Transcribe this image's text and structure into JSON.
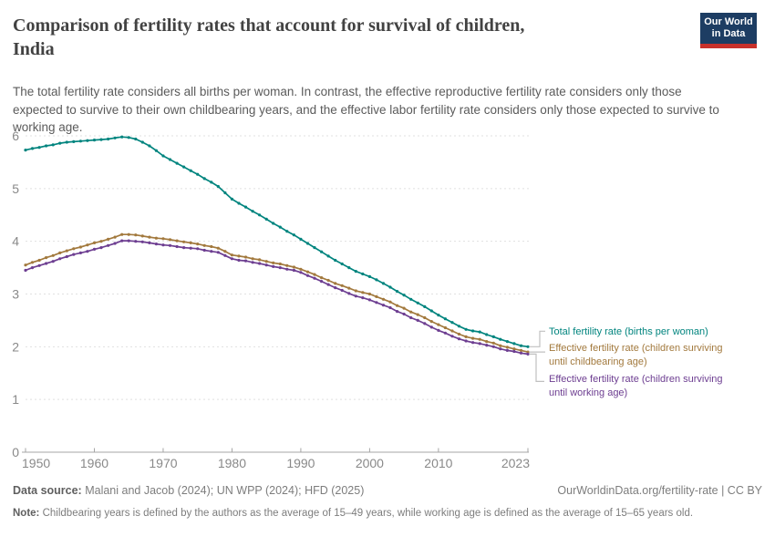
{
  "header": {
    "title_line1": "Comparison of fertility rates that account for survival of children,",
    "title_line2": "India",
    "subtitle": "The total fertility rate considers all births per woman. In contrast, the effective reproductive fertility rate considers only those expected to survive to their own childbearing years, and the effective labor fertility rate considers only those expected to survive to working age.",
    "logo": {
      "line1": "Our World",
      "line2": "in Data",
      "bg_color": "#1d3d63",
      "accent_color": "#c8312b"
    }
  },
  "chart_data": {
    "type": "line",
    "title": "Comparison of fertility rates that account for survival of children, India",
    "xlabel": "",
    "ylabel": "",
    "ylim": [
      0,
      6
    ],
    "grid": "dashed horizontal gridlines, solid baseline at 0",
    "legend_position": "right of line ends, color-coded labels with gray connectors",
    "x_ticks": [
      1950,
      1960,
      1970,
      1980,
      1990,
      2000,
      2010,
      2023
    ],
    "y_ticks": [
      0,
      1,
      2,
      3,
      4,
      5,
      6
    ],
    "x": [
      1950,
      1951,
      1952,
      1953,
      1954,
      1955,
      1956,
      1957,
      1958,
      1959,
      1960,
      1961,
      1962,
      1963,
      1964,
      1965,
      1966,
      1967,
      1968,
      1969,
      1970,
      1971,
      1972,
      1973,
      1974,
      1975,
      1976,
      1977,
      1978,
      1979,
      1980,
      1981,
      1982,
      1983,
      1984,
      1985,
      1986,
      1987,
      1988,
      1989,
      1990,
      1991,
      1992,
      1993,
      1994,
      1995,
      1996,
      1997,
      1998,
      1999,
      2000,
      2001,
      2002,
      2003,
      2004,
      2005,
      2006,
      2007,
      2008,
      2009,
      2010,
      2011,
      2012,
      2013,
      2014,
      2015,
      2016,
      2017,
      2018,
      2019,
      2020,
      2021,
      2022,
      2023
    ],
    "series": [
      {
        "name": "Total fertility rate (births per woman)",
        "label_lines": [
          "Total fertility rate (births per woman)"
        ],
        "color": "#00847e",
        "values": [
          5.73,
          5.76,
          5.78,
          5.81,
          5.83,
          5.86,
          5.88,
          5.89,
          5.9,
          5.91,
          5.92,
          5.93,
          5.94,
          5.96,
          5.98,
          5.97,
          5.94,
          5.88,
          5.81,
          5.72,
          5.62,
          5.55,
          5.48,
          5.41,
          5.34,
          5.27,
          5.19,
          5.12,
          5.04,
          4.92,
          4.8,
          4.72,
          4.65,
          4.57,
          4.5,
          4.42,
          4.34,
          4.27,
          4.19,
          4.12,
          4.04,
          3.96,
          3.88,
          3.8,
          3.72,
          3.64,
          3.57,
          3.5,
          3.43,
          3.38,
          3.33,
          3.27,
          3.2,
          3.13,
          3.05,
          2.98,
          2.9,
          2.83,
          2.76,
          2.68,
          2.6,
          2.53,
          2.46,
          2.39,
          2.33,
          2.3,
          2.28,
          2.23,
          2.19,
          2.14,
          2.1,
          2.06,
          2.02,
          2.0
        ]
      },
      {
        "name": "Effective fertility rate (children surviving until childbearing age)",
        "label_lines": [
          "Effective fertility rate (children surviving",
          "until childbearing age)"
        ],
        "color": "#a2793d",
        "values": [
          3.55,
          3.6,
          3.64,
          3.69,
          3.73,
          3.78,
          3.82,
          3.86,
          3.89,
          3.93,
          3.97,
          4.0,
          4.04,
          4.08,
          4.13,
          4.13,
          4.12,
          4.1,
          4.08,
          4.06,
          4.05,
          4.03,
          4.01,
          3.99,
          3.97,
          3.95,
          3.92,
          3.9,
          3.87,
          3.81,
          3.74,
          3.72,
          3.7,
          3.67,
          3.65,
          3.62,
          3.59,
          3.57,
          3.54,
          3.51,
          3.47,
          3.42,
          3.37,
          3.31,
          3.26,
          3.2,
          3.16,
          3.11,
          3.06,
          3.03,
          3.0,
          2.95,
          2.9,
          2.85,
          2.78,
          2.73,
          2.66,
          2.61,
          2.55,
          2.48,
          2.42,
          2.36,
          2.3,
          2.24,
          2.19,
          2.16,
          2.14,
          2.1,
          2.07,
          2.02,
          1.99,
          1.96,
          1.93,
          1.9
        ]
      },
      {
        "name": "Effective fertility rate (children surviving until working age)",
        "label_lines": [
          "Effective fertility rate (children surviving",
          "until working age)"
        ],
        "color": "#6d3e91",
        "values": [
          3.45,
          3.5,
          3.54,
          3.58,
          3.62,
          3.67,
          3.71,
          3.75,
          3.78,
          3.81,
          3.85,
          3.88,
          3.92,
          3.96,
          4.01,
          4.01,
          4.0,
          3.99,
          3.97,
          3.95,
          3.93,
          3.92,
          3.9,
          3.88,
          3.87,
          3.86,
          3.83,
          3.81,
          3.79,
          3.73,
          3.67,
          3.64,
          3.63,
          3.6,
          3.58,
          3.55,
          3.52,
          3.5,
          3.47,
          3.45,
          3.41,
          3.35,
          3.3,
          3.24,
          3.18,
          3.12,
          3.07,
          3.01,
          2.96,
          2.93,
          2.89,
          2.84,
          2.79,
          2.74,
          2.67,
          2.62,
          2.55,
          2.5,
          2.44,
          2.37,
          2.31,
          2.26,
          2.2,
          2.15,
          2.11,
          2.08,
          2.06,
          2.03,
          2.0,
          1.96,
          1.93,
          1.91,
          1.88,
          1.86
        ]
      }
    ]
  },
  "footer": {
    "data_source_label": "Data source:",
    "data_source_text": " Malani and Jacob (2024); UN WPP (2024); HFD (2025)",
    "attribution": "OurWorldinData.org/fertility-rate | CC BY",
    "note_label": "Note:",
    "note_text": " Childbearing years is defined by the authors as the average of 15–49 years, while working age is defined as the average of 15–65 years old."
  }
}
